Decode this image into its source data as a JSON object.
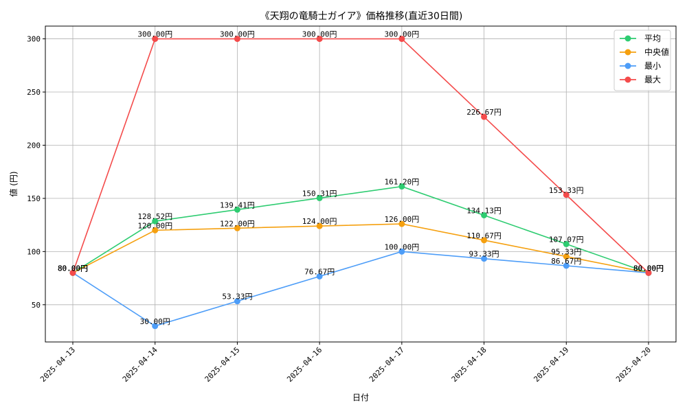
{
  "chart_data": {
    "type": "line",
    "title": "《天翔の竜騎士ガイア》価格推移(直近30日間)",
    "xlabel": "日付",
    "ylabel": "値 (円)",
    "categories": [
      "2025-04-13",
      "2025-04-14",
      "2025-04-15",
      "2025-04-16",
      "2025-04-17",
      "2025-04-18",
      "2025-04-19",
      "2025-04-20"
    ],
    "ylim": [
      15,
      312
    ],
    "yticks": [
      50,
      100,
      150,
      200,
      250,
      300
    ],
    "grid": true,
    "legend_position": "top-right",
    "value_suffix": "円",
    "series": [
      {
        "name": "平均",
        "color": "#2ecc71",
        "values": [
          80.0,
          128.52,
          139.41,
          150.31,
          161.2,
          134.13,
          107.07,
          80.0
        ]
      },
      {
        "name": "中央値",
        "color": "#f5a00f",
        "values": [
          80.0,
          120.0,
          122.0,
          124.0,
          126.0,
          110.67,
          95.33,
          80.0
        ]
      },
      {
        "name": "最小",
        "color": "#4d9df8",
        "values": [
          80.0,
          30.0,
          53.33,
          76.67,
          100.0,
          93.33,
          86.67,
          80.0
        ]
      },
      {
        "name": "最大",
        "color": "#f44b4b",
        "values": [
          80.0,
          300.0,
          300.0,
          300.0,
          300.0,
          226.67,
          153.33,
          80.0
        ]
      }
    ]
  }
}
